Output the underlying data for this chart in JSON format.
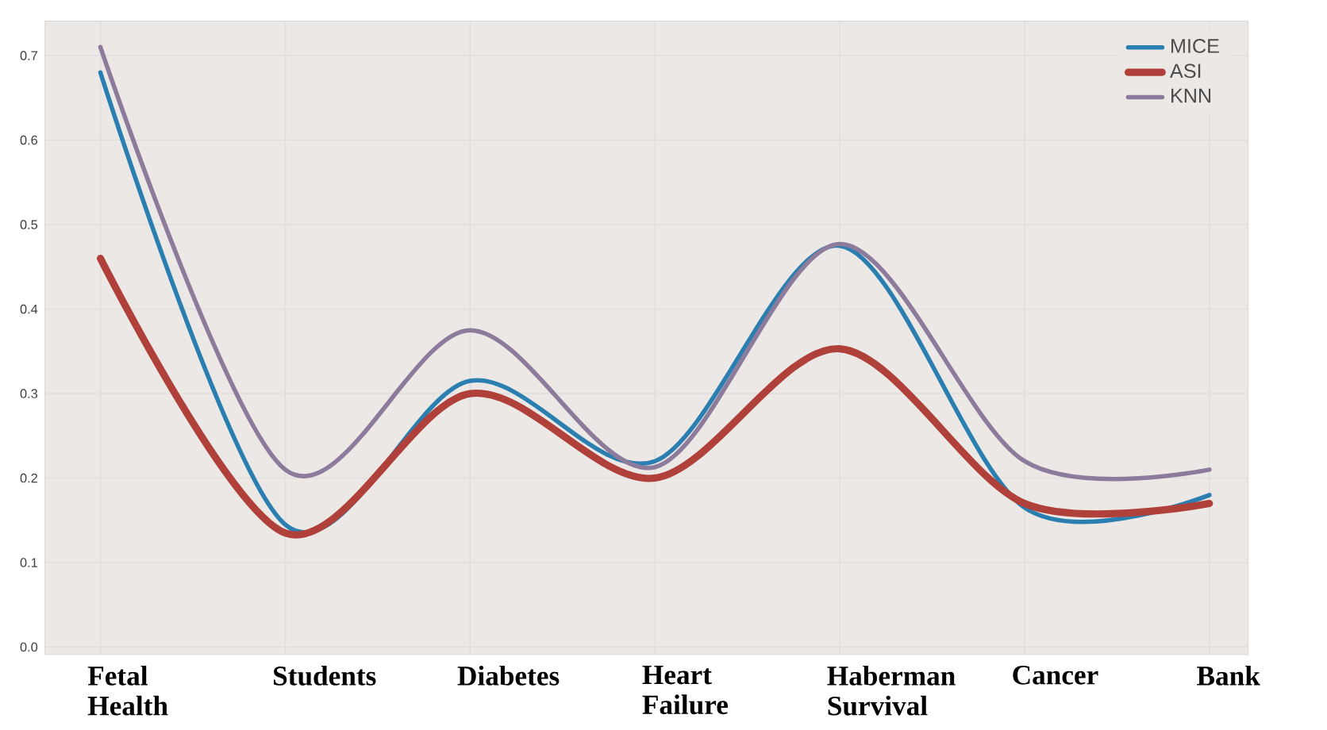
{
  "chart_data": {
    "type": "line",
    "categories": [
      "Fetal Health",
      "Students",
      "Diabetes",
      "Heart Failure",
      "Haberman Survival",
      "Cancer",
      "Bank"
    ],
    "series": [
      {
        "name": "MICE",
        "color": "#2b7fb0",
        "values": [
          0.68,
          0.145,
          0.315,
          0.22,
          0.475,
          0.165,
          0.18
        ]
      },
      {
        "name": "ASI",
        "color": "#b0403a",
        "values": [
          0.46,
          0.135,
          0.3,
          0.2,
          0.353,
          0.17,
          0.17
        ]
      },
      {
        "name": "KNN",
        "color": "#8c7b9b",
        "values": [
          0.71,
          0.21,
          0.375,
          0.213,
          0.477,
          0.22,
          0.21
        ]
      }
    ],
    "ylim": [
      -0.009,
      0.741
    ],
    "yticks": [
      {
        "value": 0,
        "label": "0.0"
      },
      0.1,
      0.2,
      0.3,
      0.4,
      0.5,
      0.6,
      0.7
    ],
    "grid": true,
    "legend": "top right",
    "marker": "none",
    "line_style": "solid"
  }
}
